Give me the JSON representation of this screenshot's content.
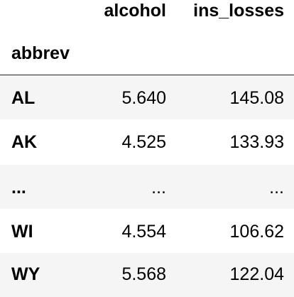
{
  "table": {
    "columns": [
      "alcohol",
      "ins_losses"
    ],
    "index_name": "abbrev",
    "rows": [
      {
        "label": "AL",
        "alcohol": "5.640",
        "ins_losses": "145.08"
      },
      {
        "label": "AK",
        "alcohol": "4.525",
        "ins_losses": "133.93"
      },
      {
        "label": "...",
        "alcohol": "...",
        "ins_losses": "..."
      },
      {
        "label": "WI",
        "alcohol": "4.554",
        "ins_losses": "106.62"
      },
      {
        "label": "WY",
        "alcohol": "5.568",
        "ins_losses": "122.04"
      }
    ]
  }
}
